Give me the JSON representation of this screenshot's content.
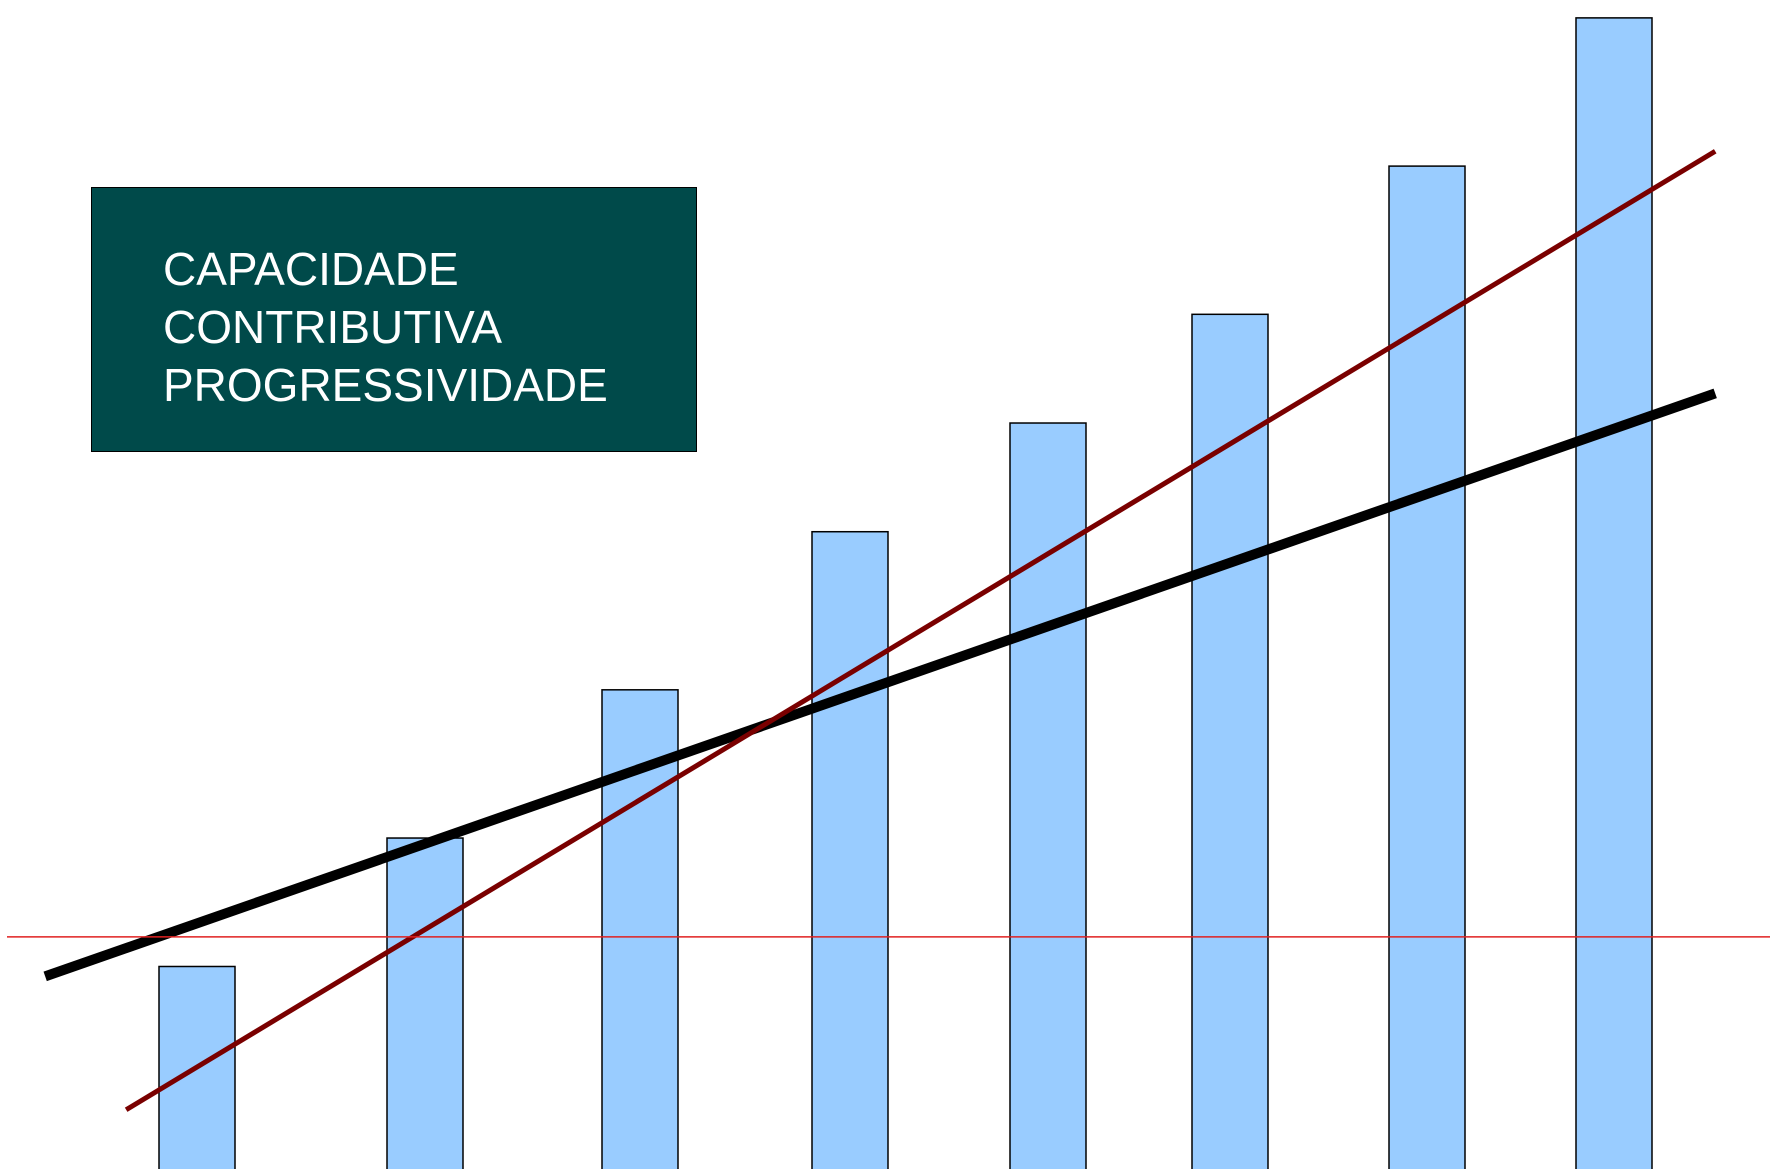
{
  "label_box": {
    "lines": [
      "CAPACIDADE",
      "CONTRIBUTIVA",
      "PROGRESSIVIDADE"
    ],
    "background": "#004a4a",
    "text_color": "#ffffff"
  },
  "chart_data": {
    "type": "bar",
    "title": "",
    "xlabel": "",
    "ylabel": "",
    "categories": [
      "",
      "",
      "",
      "",
      "",
      "",
      "",
      ""
    ],
    "values": [
      21,
      34,
      49,
      65,
      76,
      87,
      102,
      117
    ],
    "ylim": [
      0,
      118
    ],
    "grid": false,
    "bar_color": "#99ccff",
    "overlays": [
      {
        "kind": "trend-line",
        "color": "#000000",
        "from": [
          -0.75,
          20
        ],
        "to": [
          7.5,
          79
        ]
      },
      {
        "kind": "trend-line",
        "color": "#7a0000",
        "from": [
          -0.35,
          6.5
        ],
        "to": [
          7.5,
          103.5
        ]
      },
      {
        "kind": "reference-line",
        "color": "#e02020",
        "y": 24
      }
    ]
  }
}
